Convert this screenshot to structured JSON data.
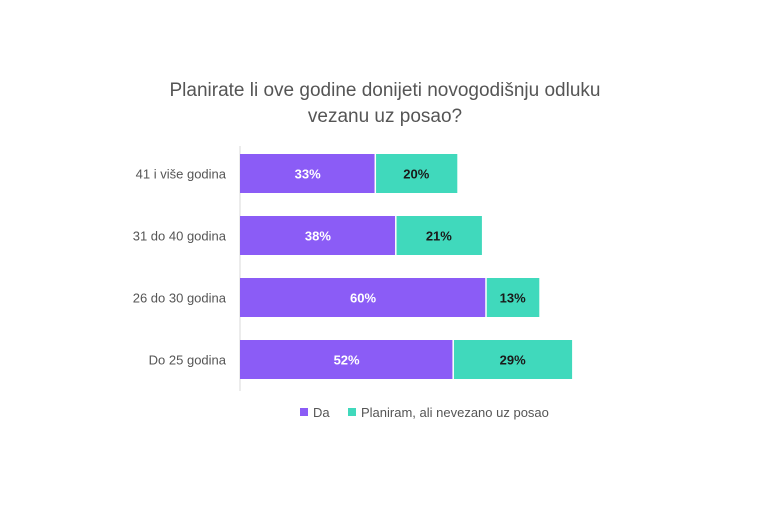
{
  "chart_data": {
    "type": "bar",
    "orientation": "horizontal",
    "stacked": true,
    "title_lines": [
      "Planirate li ove godine donijeti novogodišnju odluku",
      "vezanu uz posao?"
    ],
    "categories": [
      "41 i više godina",
      "31 do 40 godina",
      "26 do 30 godina",
      "Do 25 godina"
    ],
    "series": [
      {
        "name": "Da",
        "values": [
          33,
          38,
          60,
          52
        ],
        "labels": [
          "33%",
          "38%",
          "60%",
          "52%"
        ],
        "color": "#8b5cf6",
        "label_color": "#ffffff"
      },
      {
        "name": "Planiram, ali nevezano uz posao",
        "values": [
          20,
          21,
          13,
          29
        ],
        "labels": [
          "20%",
          "21%",
          "13%",
          "29%"
        ],
        "color": "#40d9bc",
        "label_color": "#1a1a1a"
      }
    ],
    "xlim": [
      0,
      100
    ],
    "grid": false,
    "legend_position": "bottom"
  }
}
